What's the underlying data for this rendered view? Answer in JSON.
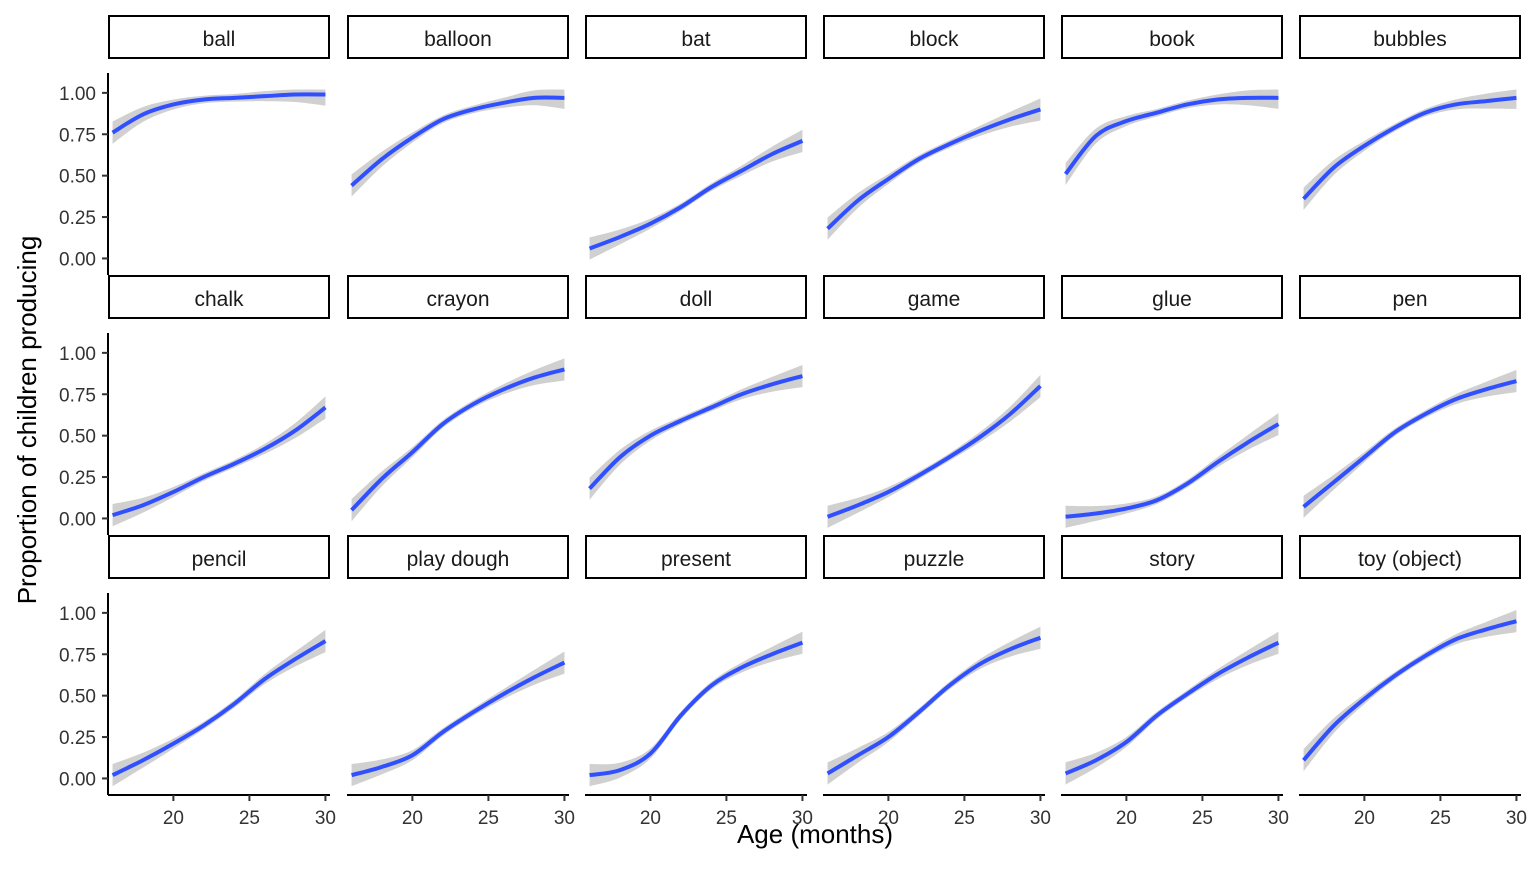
{
  "chart_data": {
    "type": "line",
    "layout": "facet-grid",
    "xlabel": "Age (months)",
    "ylabel": "Proportion of children producing",
    "xlim": [
      16,
      30
    ],
    "ylim": [
      0,
      1
    ],
    "x_ticks": [
      20,
      25,
      30
    ],
    "y_ticks": [
      0.0,
      0.25,
      0.5,
      0.75,
      1.0
    ],
    "y_tick_labels": [
      "0.00",
      "0.25",
      "0.50",
      "0.75",
      "1.00"
    ],
    "line_color": "#3050ff",
    "ribbon_color": "#c8c8c8",
    "grid": false,
    "x": [
      16,
      18,
      20,
      22,
      24,
      26,
      28,
      30
    ],
    "series": [
      {
        "name": "ball",
        "values": [
          0.76,
          0.87,
          0.93,
          0.96,
          0.97,
          0.98,
          0.99,
          0.99
        ]
      },
      {
        "name": "balloon",
        "values": [
          0.44,
          0.6,
          0.73,
          0.84,
          0.9,
          0.94,
          0.97,
          0.97
        ]
      },
      {
        "name": "bat",
        "values": [
          0.06,
          0.13,
          0.21,
          0.31,
          0.43,
          0.53,
          0.63,
          0.71
        ]
      },
      {
        "name": "block",
        "values": [
          0.18,
          0.35,
          0.48,
          0.6,
          0.69,
          0.77,
          0.84,
          0.9
        ]
      },
      {
        "name": "book",
        "values": [
          0.51,
          0.74,
          0.83,
          0.88,
          0.93,
          0.96,
          0.97,
          0.97
        ]
      },
      {
        "name": "bubbles",
        "values": [
          0.36,
          0.55,
          0.68,
          0.79,
          0.88,
          0.93,
          0.95,
          0.97
        ]
      },
      {
        "name": "chalk",
        "values": [
          0.02,
          0.08,
          0.16,
          0.25,
          0.33,
          0.42,
          0.53,
          0.67
        ]
      },
      {
        "name": "crayon",
        "values": [
          0.05,
          0.24,
          0.4,
          0.57,
          0.69,
          0.78,
          0.85,
          0.9
        ]
      },
      {
        "name": "doll",
        "values": [
          0.18,
          0.37,
          0.5,
          0.59,
          0.67,
          0.75,
          0.81,
          0.86
        ]
      },
      {
        "name": "game",
        "values": [
          0.01,
          0.08,
          0.16,
          0.26,
          0.37,
          0.49,
          0.63,
          0.8
        ]
      },
      {
        "name": "glue",
        "values": [
          0.01,
          0.03,
          0.06,
          0.11,
          0.21,
          0.34,
          0.46,
          0.57
        ]
      },
      {
        "name": "pen",
        "values": [
          0.07,
          0.22,
          0.37,
          0.52,
          0.63,
          0.72,
          0.78,
          0.83
        ]
      },
      {
        "name": "pencil",
        "values": [
          0.02,
          0.11,
          0.21,
          0.32,
          0.45,
          0.6,
          0.72,
          0.83
        ]
      },
      {
        "name": "play dough",
        "values": [
          0.02,
          0.07,
          0.14,
          0.28,
          0.4,
          0.51,
          0.61,
          0.7
        ]
      },
      {
        "name": "present",
        "values": [
          0.02,
          0.05,
          0.15,
          0.38,
          0.56,
          0.67,
          0.75,
          0.82
        ]
      },
      {
        "name": "puzzle",
        "values": [
          0.03,
          0.14,
          0.25,
          0.4,
          0.56,
          0.69,
          0.78,
          0.85
        ]
      },
      {
        "name": "story",
        "values": [
          0.03,
          0.11,
          0.22,
          0.38,
          0.51,
          0.63,
          0.73,
          0.82
        ]
      },
      {
        "name": "toy (object)",
        "values": [
          0.11,
          0.32,
          0.48,
          0.62,
          0.74,
          0.84,
          0.9,
          0.95
        ]
      }
    ]
  }
}
